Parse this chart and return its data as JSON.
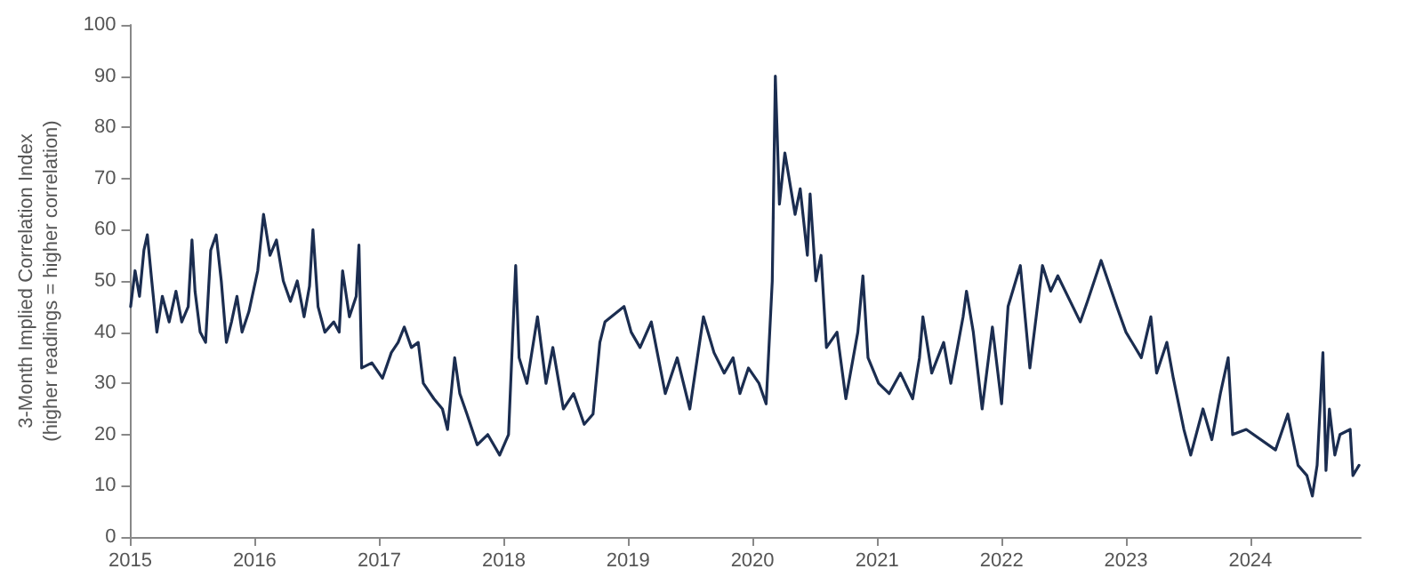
{
  "chart_data": {
    "type": "line",
    "ylabel": "3-Month Implied Correlation Index\n(higher readings = higher correlation)",
    "xlim": [
      "2015-01-01",
      "2024-11-20"
    ],
    "xticks": [
      {
        "value": "2015-01-01",
        "label": "2015"
      },
      {
        "value": "2016-01-01",
        "label": "2016"
      },
      {
        "value": "2017-01-01",
        "label": "2017"
      },
      {
        "value": "2018-01-01",
        "label": "2018"
      },
      {
        "value": "2019-01-01",
        "label": "2019"
      },
      {
        "value": "2020-01-01",
        "label": "2020"
      },
      {
        "value": "2021-01-01",
        "label": "2021"
      },
      {
        "value": "2022-01-01",
        "label": "2022"
      },
      {
        "value": "2023-01-01",
        "label": "2023"
      },
      {
        "value": "2024-01-01",
        "label": "2024"
      }
    ],
    "ylim": [
      0,
      100
    ],
    "yticks": [
      0,
      10,
      20,
      30,
      40,
      50,
      60,
      70,
      80,
      90,
      100
    ],
    "marker": "none",
    "line_style": "solid",
    "x": [
      "2015-01-02",
      "2015-01-15",
      "2015-01-28",
      "2015-02-10",
      "2015-02-20",
      "2015-03-05",
      "2015-03-20",
      "2015-04-05",
      "2015-04-25",
      "2015-05-15",
      "2015-06-01",
      "2015-06-20",
      "2015-07-01",
      "2015-07-10",
      "2015-07-25",
      "2015-08-10",
      "2015-08-25",
      "2015-09-10",
      "2015-09-25",
      "2015-10-10",
      "2015-10-25",
      "2015-11-10",
      "2015-11-25",
      "2015-12-15",
      "2016-01-10",
      "2016-01-27",
      "2016-02-15",
      "2016-03-05",
      "2016-03-25",
      "2016-04-15",
      "2016-05-05",
      "2016-05-25",
      "2016-06-10",
      "2016-06-20",
      "2016-07-05",
      "2016-07-25",
      "2016-08-20",
      "2016-09-05",
      "2016-09-15",
      "2016-10-05",
      "2016-10-25",
      "2016-11-02",
      "2016-11-10",
      "2016-12-10",
      "2017-01-10",
      "2017-02-05",
      "2017-02-25",
      "2017-03-15",
      "2017-04-05",
      "2017-04-25",
      "2017-05-10",
      "2017-06-10",
      "2017-07-05",
      "2017-07-20",
      "2017-08-10",
      "2017-08-25",
      "2017-09-15",
      "2017-10-15",
      "2017-11-15",
      "2017-12-20",
      "2018-01-15",
      "2018-02-05",
      "2018-02-15",
      "2018-03-10",
      "2018-04-10",
      "2018-05-05",
      "2018-05-25",
      "2018-06-25",
      "2018-07-25",
      "2018-08-25",
      "2018-09-20",
      "2018-10-10",
      "2018-10-25",
      "2018-12-20",
      "2019-01-10",
      "2019-02-05",
      "2019-03-10",
      "2019-04-20",
      "2019-05-25",
      "2019-07-01",
      "2019-08-10",
      "2019-09-10",
      "2019-10-10",
      "2019-11-05",
      "2019-11-25",
      "2019-12-20",
      "2020-01-20",
      "2020-02-10",
      "2020-02-28",
      "2020-03-08",
      "2020-03-20",
      "2020-04-05",
      "2020-05-05",
      "2020-05-20",
      "2020-06-10",
      "2020-06-18",
      "2020-07-05",
      "2020-07-20",
      "2020-08-05",
      "2020-09-05",
      "2020-10-01",
      "2020-11-05",
      "2020-11-20",
      "2020-12-05",
      "2021-01-05",
      "2021-02-05",
      "2021-03-10",
      "2021-04-15",
      "2021-05-05",
      "2021-05-15",
      "2021-06-10",
      "2021-07-15",
      "2021-08-05",
      "2021-09-10",
      "2021-09-20",
      "2021-10-10",
      "2021-11-05",
      "2021-12-05",
      "2022-01-01",
      "2022-01-20",
      "2022-02-25",
      "2022-03-25",
      "2022-05-01",
      "2022-05-25",
      "2022-06-15",
      "2022-08-20",
      "2022-09-10",
      "2022-10-20",
      "2022-12-05",
      "2023-01-01",
      "2023-02-15",
      "2023-03-15",
      "2023-04-01",
      "2023-05-01",
      "2023-05-20",
      "2023-06-20",
      "2023-07-10",
      "2023-08-15",
      "2023-09-10",
      "2023-10-05",
      "2023-10-28",
      "2023-11-10",
      "2023-12-20",
      "2024-03-15",
      "2024-04-20",
      "2024-05-20",
      "2024-06-15",
      "2024-07-01",
      "2024-07-15",
      "2024-08-01",
      "2024-08-10",
      "2024-08-20",
      "2024-09-05",
      "2024-09-20",
      "2024-10-20",
      "2024-10-28",
      "2024-11-15"
    ],
    "series": [
      {
        "color": "#1b2d50",
        "values": [
          45,
          52,
          47,
          56,
          59,
          50,
          40,
          47,
          42,
          48,
          42,
          45,
          58,
          48,
          40,
          38,
          56,
          59,
          50,
          38,
          42,
          47,
          40,
          44,
          52,
          63,
          55,
          58,
          50,
          46,
          50,
          43,
          49,
          60,
          45,
          40,
          42,
          40,
          52,
          43,
          47,
          57,
          33,
          34,
          31,
          36,
          38,
          41,
          37,
          38,
          30,
          27,
          25,
          21,
          35,
          28,
          24,
          18,
          20,
          16,
          20,
          53,
          35,
          30,
          43,
          30,
          37,
          25,
          28,
          22,
          24,
          38,
          42,
          45,
          40,
          37,
          42,
          28,
          35,
          25,
          43,
          36,
          32,
          35,
          28,
          33,
          30,
          26,
          50,
          90,
          65,
          75,
          63,
          68,
          55,
          67,
          50,
          55,
          37,
          40,
          27,
          40,
          51,
          35,
          30,
          28,
          32,
          27,
          35,
          43,
          32,
          38,
          30,
          43,
          48,
          40,
          25,
          41,
          26,
          45,
          53,
          33,
          53,
          48,
          51,
          42,
          46,
          54,
          45,
          40,
          35,
          43,
          32,
          38,
          31,
          21,
          16,
          25,
          19,
          28,
          35,
          20,
          21,
          17,
          24,
          14,
          12,
          8,
          14,
          36,
          13,
          25,
          16,
          20,
          21,
          12,
          14
        ]
      }
    ]
  }
}
